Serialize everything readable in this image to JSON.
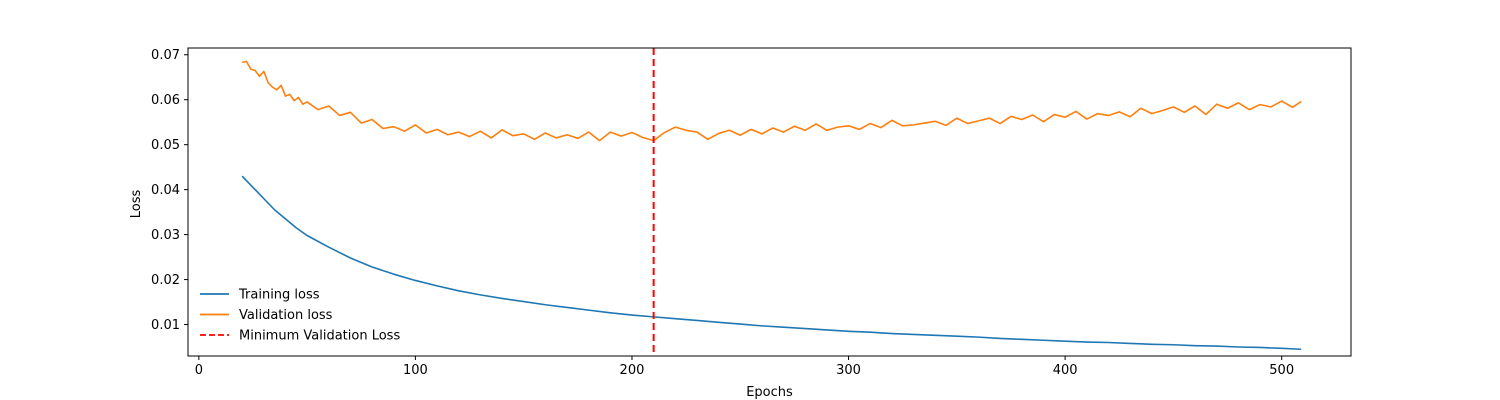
{
  "chart_data": {
    "type": "line",
    "title": "",
    "xlabel": "Epochs",
    "ylabel": "Loss",
    "xlim": [
      -5,
      532
    ],
    "ylim": [
      0.003,
      0.0715
    ],
    "x_ticks": [
      0,
      100,
      200,
      300,
      400,
      500
    ],
    "y_ticks": [
      0.01,
      0.02,
      0.03,
      0.04,
      0.05,
      0.06,
      0.07
    ],
    "x_tick_labels": [
      "0",
      "100",
      "200",
      "300",
      "400",
      "500"
    ],
    "y_tick_labels": [
      "0.01",
      "0.02",
      "0.03",
      "0.04",
      "0.05",
      "0.06",
      "0.07"
    ],
    "grid": false,
    "legend_position": "lower-left",
    "series": [
      {
        "name": "Training loss",
        "color": "#1f77b4",
        "x": [
          20,
          25,
          30,
          35,
          40,
          45,
          50,
          60,
          70,
          80,
          90,
          100,
          110,
          120,
          130,
          140,
          150,
          160,
          170,
          180,
          190,
          200,
          210,
          220,
          230,
          240,
          250,
          260,
          270,
          280,
          290,
          300,
          310,
          320,
          330,
          340,
          350,
          360,
          370,
          380,
          390,
          400,
          410,
          420,
          430,
          440,
          450,
          460,
          470,
          480,
          490,
          500,
          509
        ],
        "values": [
          0.043,
          0.0405,
          0.038,
          0.0355,
          0.0335,
          0.0315,
          0.0298,
          0.0272,
          0.0248,
          0.0228,
          0.0212,
          0.0198,
          0.0186,
          0.0175,
          0.0166,
          0.0158,
          0.0151,
          0.0144,
          0.0138,
          0.0132,
          0.0126,
          0.0121,
          0.0117,
          0.0113,
          0.0109,
          0.0105,
          0.0101,
          0.0097,
          0.0094,
          0.0091,
          0.0088,
          0.0085,
          0.0083,
          0.008,
          0.0078,
          0.0076,
          0.0074,
          0.0072,
          0.0069,
          0.0067,
          0.0065,
          0.0063,
          0.0061,
          0.006,
          0.0058,
          0.0056,
          0.0055,
          0.0053,
          0.0052,
          0.005,
          0.0049,
          0.0047,
          0.0045
        ]
      },
      {
        "name": "Validation loss",
        "color": "#ff7f0e",
        "x": [
          20,
          22,
          24,
          26,
          28,
          30,
          32,
          34,
          36,
          38,
          40,
          42,
          44,
          46,
          48,
          50,
          55,
          60,
          65,
          70,
          75,
          80,
          85,
          90,
          95,
          100,
          105,
          110,
          115,
          120,
          125,
          130,
          135,
          140,
          145,
          150,
          155,
          160,
          165,
          170,
          175,
          180,
          185,
          190,
          195,
          200,
          205,
          210,
          215,
          220,
          225,
          230,
          235,
          240,
          245,
          250,
          255,
          260,
          265,
          270,
          275,
          280,
          285,
          290,
          295,
          300,
          305,
          310,
          315,
          320,
          325,
          330,
          335,
          340,
          345,
          350,
          355,
          360,
          365,
          370,
          375,
          380,
          385,
          390,
          395,
          400,
          405,
          410,
          415,
          420,
          425,
          430,
          435,
          440,
          445,
          450,
          455,
          460,
          465,
          470,
          475,
          480,
          485,
          490,
          495,
          500,
          505,
          509
        ],
        "values": [
          0.0683,
          0.0685,
          0.0668,
          0.0665,
          0.0652,
          0.0663,
          0.0638,
          0.0628,
          0.0622,
          0.0632,
          0.0608,
          0.0612,
          0.0598,
          0.0605,
          0.059,
          0.0595,
          0.0578,
          0.0586,
          0.0565,
          0.0572,
          0.0548,
          0.0556,
          0.0536,
          0.054,
          0.053,
          0.0544,
          0.0526,
          0.0534,
          0.0522,
          0.0528,
          0.0518,
          0.053,
          0.0515,
          0.0533,
          0.052,
          0.0524,
          0.0512,
          0.0526,
          0.0515,
          0.0522,
          0.0514,
          0.0528,
          0.0509,
          0.0528,
          0.0519,
          0.0527,
          0.0516,
          0.0509,
          0.0527,
          0.0539,
          0.0532,
          0.0528,
          0.0512,
          0.0525,
          0.0532,
          0.0521,
          0.0534,
          0.0524,
          0.0537,
          0.0528,
          0.0541,
          0.0532,
          0.0546,
          0.0532,
          0.0539,
          0.0542,
          0.0534,
          0.0547,
          0.0538,
          0.0554,
          0.0542,
          0.0544,
          0.0548,
          0.0552,
          0.0543,
          0.0559,
          0.0547,
          0.0553,
          0.0559,
          0.0547,
          0.0563,
          0.0556,
          0.0566,
          0.0551,
          0.0567,
          0.0561,
          0.0574,
          0.0557,
          0.0569,
          0.0565,
          0.0573,
          0.0562,
          0.0581,
          0.0569,
          0.0576,
          0.0584,
          0.0572,
          0.0586,
          0.0567,
          0.059,
          0.0581,
          0.0593,
          0.0578,
          0.0589,
          0.0584,
          0.0597,
          0.0583,
          0.0596
        ]
      }
    ],
    "vlines": [
      {
        "name": "Minimum Validation Loss",
        "x": 210,
        "color": "#ff0000",
        "style": "dashed"
      }
    ]
  }
}
